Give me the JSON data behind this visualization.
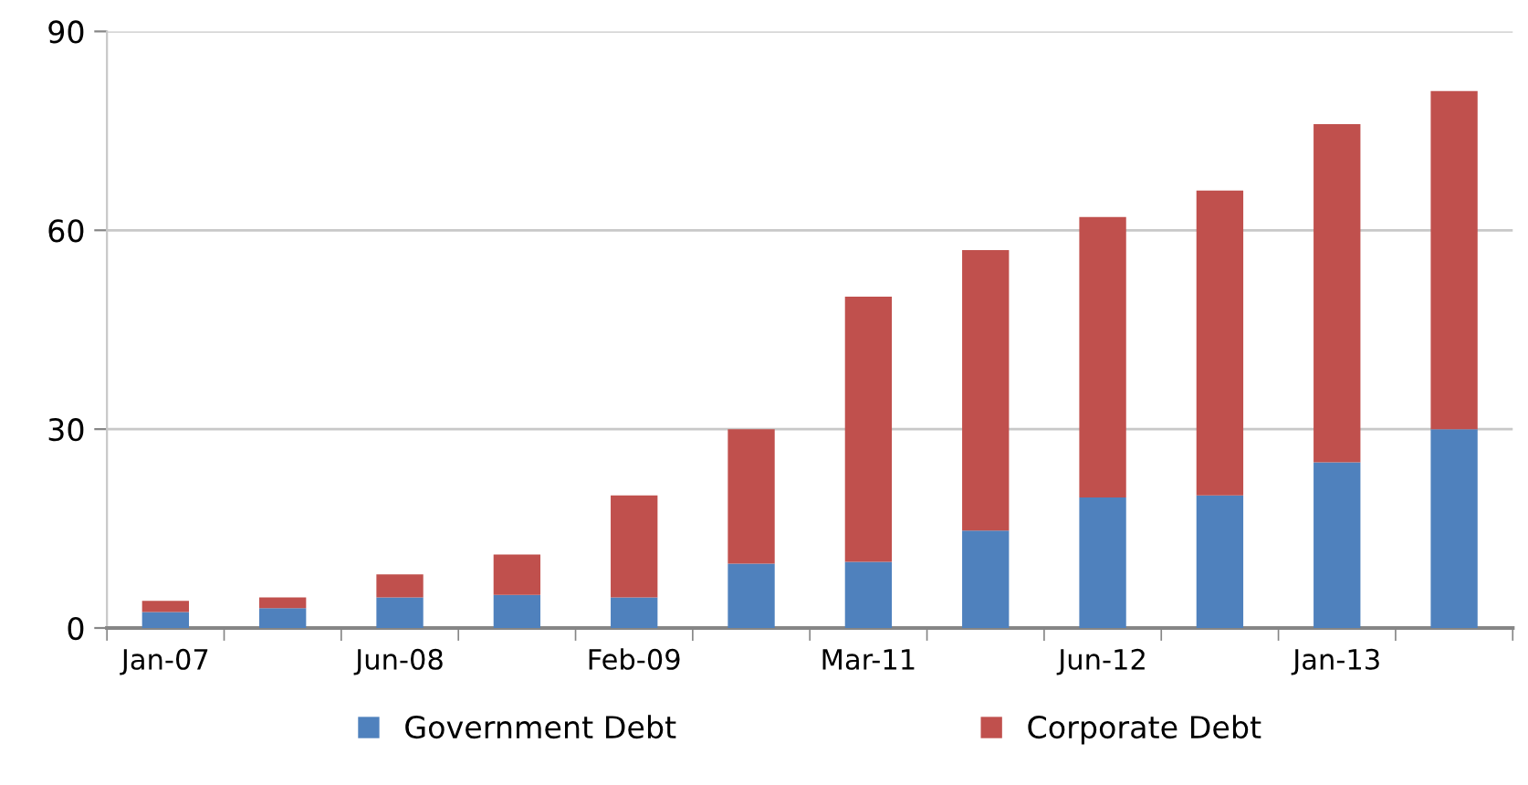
{
  "chart_data": {
    "type": "bar",
    "stacked": true,
    "categories": [
      "Jan-07",
      null,
      "Jun-08",
      null,
      "Feb-09",
      null,
      "Mar-11",
      null,
      "Jun-12",
      null,
      "Jan-13",
      null
    ],
    "series": [
      {
        "name": "Government Debt",
        "color": "#4f81bd",
        "values": [
          2.4,
          3.0,
          4.6,
          5.0,
          4.6,
          9.7,
          10.0,
          14.7,
          19.7,
          20.0,
          25.0,
          30.0
        ]
      },
      {
        "name": "Corporate Debt",
        "color": "#c0504d",
        "values": [
          1.7,
          1.6,
          3.5,
          6.1,
          15.4,
          20.3,
          40.0,
          42.3,
          42.3,
          46.0,
          51.0,
          51.0
        ]
      }
    ],
    "ylim": [
      0,
      90
    ],
    "yticks": [
      0,
      30,
      60,
      90
    ],
    "grid": "y",
    "legend": "bottom"
  }
}
